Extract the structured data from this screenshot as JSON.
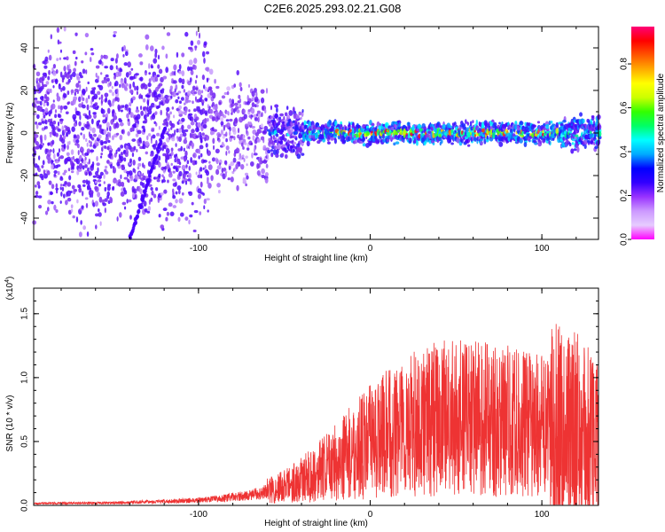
{
  "title": "C2E6.2025.293.02.21.G08",
  "chart_data": [
    {
      "type": "heatmap",
      "xlabel": "Height of straight line (km)",
      "ylabel": "Frequency (Hz)",
      "xlim": [
        -196,
        133
      ],
      "ylim": [
        -50,
        50
      ],
      "xticks": [
        -100,
        0,
        100
      ],
      "yticks": [
        -40,
        -20,
        0,
        20,
        40
      ],
      "colorbar": {
        "label": "Normalized spectral amplitude",
        "range": [
          0,
          0.97
        ],
        "ticks": [
          0.0,
          0.2,
          0.4,
          0.6,
          0.8
        ],
        "tick_labels": [
          "0.0",
          "0.2",
          "0.4",
          "0.6",
          "0.8"
        ],
        "colors": [
          "#ff00ff",
          "#e6ccff",
          "#cc99ff",
          "#9933ff",
          "#3300ff",
          "#0000ff",
          "#00aaff",
          "#00ffff",
          "#00ff66",
          "#33ff00",
          "#ccff00",
          "#ffff00",
          "#ffaa00",
          "#ff5500",
          "#ff0000",
          "#ff0077"
        ]
      }
    },
    {
      "type": "line",
      "series": [
        {
          "name": "SNR",
          "color": "#ee3333"
        }
      ],
      "xlabel": "Height of straight line (km)",
      "ylabel": "SNR (10 * v/v)",
      "y_multiplier": "(x10",
      "y_multiplier_exp": "4",
      "xlim": [
        -196,
        133
      ],
      "ylim": [
        0,
        1.7
      ],
      "xticks": [
        -100,
        0,
        100
      ],
      "yticks": [
        0.0,
        0.5,
        1.0,
        1.5
      ],
      "ytick_labels": [
        "0.0",
        "0.5",
        "1.0",
        "1.5"
      ],
      "envelope": {
        "x": [
          -196,
          -150,
          -110,
          -90,
          -70,
          -55,
          -40,
          -25,
          -10,
          0,
          20,
          40,
          60,
          80,
          100,
          115,
          125,
          133
        ],
        "y": [
          0.015,
          0.02,
          0.035,
          0.05,
          0.08,
          0.13,
          0.2,
          0.3,
          0.42,
          0.5,
          0.62,
          0.68,
          0.68,
          0.66,
          0.62,
          0.55,
          0.5,
          0.45
        ]
      }
    }
  ]
}
